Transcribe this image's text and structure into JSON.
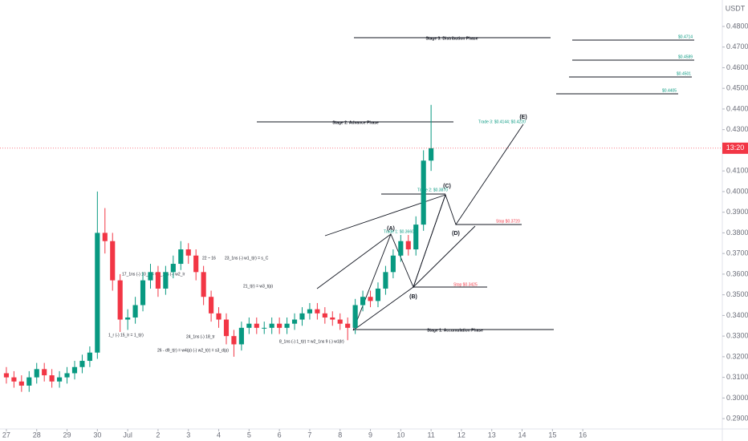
{
  "chart_data": {
    "type": "candlestick",
    "axis_label": "USDT",
    "countdown": "13:20",
    "up_color": "#089981",
    "down_color": "#f23645",
    "x": [
      0,
      0.25,
      0.5,
      0.75,
      1,
      1.25,
      1.5,
      1.75,
      2,
      2.25,
      2.5,
      2.75,
      3,
      3.25,
      3.5,
      3.75,
      4,
      4.25,
      4.5,
      4.75,
      5,
      5.25,
      5.5,
      5.75,
      6,
      6.25,
      6.5,
      6.75,
      7,
      7.25,
      7.5,
      7.75,
      8,
      8.25,
      8.5,
      8.75,
      9,
      9.25,
      9.5,
      9.75,
      10,
      10.25,
      10.5,
      10.75,
      11,
      11.25,
      11.5,
      11.75,
      12,
      12.25,
      12.5,
      12.75,
      13,
      13.25,
      13.5,
      13.75,
      14
    ],
    "open": [
      0.312,
      0.31,
      0.308,
      0.306,
      0.31,
      0.314,
      0.311,
      0.308,
      0.31,
      0.312,
      0.315,
      0.318,
      0.322,
      0.38,
      0.376,
      0.357,
      0.338,
      0.339,
      0.345,
      0.357,
      0.361,
      0.353,
      0.361,
      0.365,
      0.372,
      0.369,
      0.361,
      0.349,
      0.341,
      0.338,
      0.33,
      0.326,
      0.334,
      0.336,
      0.334,
      0.334,
      0.336,
      0.334,
      0.336,
      0.338,
      0.341,
      0.343,
      0.341,
      0.339,
      0.338,
      0.336,
      0.334,
      0.345,
      0.349,
      0.347,
      0.353,
      0.361,
      0.369,
      0.376,
      0.372,
      0.384,
      0.415
    ],
    "high": [
      0.315,
      0.313,
      0.311,
      0.313,
      0.317,
      0.317,
      0.314,
      0.313,
      0.315,
      0.318,
      0.321,
      0.325,
      0.4,
      0.392,
      0.38,
      0.36,
      0.343,
      0.349,
      0.361,
      0.365,
      0.364,
      0.364,
      0.369,
      0.376,
      0.375,
      0.372,
      0.364,
      0.352,
      0.344,
      0.341,
      0.333,
      0.337,
      0.339,
      0.339,
      0.337,
      0.339,
      0.339,
      0.339,
      0.341,
      0.344,
      0.346,
      0.346,
      0.344,
      0.342,
      0.341,
      0.339,
      0.348,
      0.352,
      0.352,
      0.356,
      0.364,
      0.372,
      0.379,
      0.379,
      0.388,
      0.42,
      0.442
    ],
    "low": [
      0.307,
      0.305,
      0.303,
      0.303,
      0.307,
      0.308,
      0.305,
      0.305,
      0.307,
      0.309,
      0.312,
      0.315,
      0.319,
      0.37,
      0.352,
      0.332,
      0.333,
      0.336,
      0.342,
      0.353,
      0.349,
      0.35,
      0.358,
      0.362,
      0.365,
      0.357,
      0.345,
      0.337,
      0.334,
      0.326,
      0.32,
      0.323,
      0.331,
      0.331,
      0.331,
      0.331,
      0.331,
      0.331,
      0.333,
      0.335,
      0.338,
      0.338,
      0.336,
      0.335,
      0.333,
      0.328,
      0.331,
      0.342,
      0.344,
      0.344,
      0.35,
      0.358,
      0.366,
      0.369,
      0.369,
      0.381,
      0.41
    ],
    "close": [
      0.31,
      0.308,
      0.306,
      0.31,
      0.314,
      0.311,
      0.308,
      0.31,
      0.312,
      0.315,
      0.318,
      0.322,
      0.38,
      0.376,
      0.357,
      0.338,
      0.339,
      0.345,
      0.357,
      0.361,
      0.353,
      0.361,
      0.365,
      0.372,
      0.369,
      0.361,
      0.349,
      0.341,
      0.338,
      0.33,
      0.326,
      0.334,
      0.336,
      0.334,
      0.334,
      0.336,
      0.334,
      0.336,
      0.338,
      0.341,
      0.343,
      0.341,
      0.339,
      0.338,
      0.336,
      0.334,
      0.345,
      0.349,
      0.347,
      0.353,
      0.361,
      0.369,
      0.376,
      0.372,
      0.384,
      0.415,
      0.421
    ],
    "xlim": [
      -0.21,
      23.6
    ],
    "xticks": [
      {
        "value": 0,
        "label": "27"
      },
      {
        "value": 1,
        "label": "28"
      },
      {
        "value": 2,
        "label": "29"
      },
      {
        "value": 3,
        "label": "30"
      },
      {
        "value": 4,
        "label": "Jul"
      },
      {
        "value": 5,
        "label": "2"
      },
      {
        "value": 6,
        "label": "3"
      },
      {
        "value": 7,
        "label": "4"
      },
      {
        "value": 8,
        "label": "5"
      },
      {
        "value": 9,
        "label": "6"
      },
      {
        "value": 10,
        "label": "7"
      },
      {
        "value": 11,
        "label": "8"
      },
      {
        "value": 12,
        "label": "9"
      },
      {
        "value": 13,
        "label": "10"
      },
      {
        "value": 14,
        "label": "11"
      },
      {
        "value": 15,
        "label": "12"
      },
      {
        "value": 16,
        "label": "13"
      },
      {
        "value": 17,
        "label": "14"
      },
      {
        "value": 18,
        "label": "15"
      },
      {
        "value": 19,
        "label": "16"
      }
    ],
    "ylim": [
      0.285,
      0.4928
    ],
    "yticks": [
      {
        "value": 0.48,
        "label": "0.4800"
      },
      {
        "value": 0.47,
        "label": "0.4700"
      },
      {
        "value": 0.46,
        "label": "0.4600"
      },
      {
        "value": 0.45,
        "label": "0.4500"
      },
      {
        "value": 0.44,
        "label": "0.4400"
      },
      {
        "value": 0.43,
        "label": "0.4300"
      },
      {
        "value": 0.42,
        "label": "0.4200"
      },
      {
        "value": 0.41,
        "label": "0.4100"
      },
      {
        "value": 0.4,
        "label": "0.4000"
      },
      {
        "value": 0.39,
        "label": "0.3900"
      },
      {
        "value": 0.38,
        "label": "0.3800"
      },
      {
        "value": 0.37,
        "label": "0.3700"
      },
      {
        "value": 0.36,
        "label": "0.3600"
      },
      {
        "value": 0.35,
        "label": "0.3500"
      },
      {
        "value": 0.34,
        "label": "0.3400"
      },
      {
        "value": 0.33,
        "label": "0.3300"
      },
      {
        "value": 0.32,
        "label": "0.3200"
      },
      {
        "value": 0.31,
        "label": "0.3100"
      },
      {
        "value": 0.3,
        "label": "0.3000"
      },
      {
        "value": 0.29,
        "label": "0.2900"
      }
    ],
    "annotations": {
      "stages": [
        "Stage 3: Distribution Phase",
        "Stage 2: Advance Phase",
        "Stage 1: Accumulation Phase"
      ],
      "waves": [
        "(A)",
        "(B)",
        "(C)",
        "(D)",
        "(E)"
      ],
      "trades": [
        "Trade 1: $0.3660",
        "Trade 2: $0.3870",
        "Trade 3: $0.4144; $0.4220"
      ],
      "stops": [
        "Stop $0.3720",
        "Stop $0.3425"
      ],
      "targets": [
        "$0.4714",
        "$0.4589",
        "$0.4501",
        "$0.4405"
      ],
      "counts": [
        "17_1ns (-) 10_tr = w3_1ns (-) w2_lr",
        "24_1ns (-) 18_tr",
        "23_1ns (-) w1_t(r) = s_C",
        "21_t(r) = w3_t(p)",
        "22 ~ 16",
        "26 - d9_t(r) = w4(p) (-) w2_t(r) = s3_d(p)",
        "8_1ns (-) 1_t(r) = w2_1ns 9 (-) w1(lr)",
        "1_r (-) 15_lr = 1_t(r)"
      ]
    }
  }
}
